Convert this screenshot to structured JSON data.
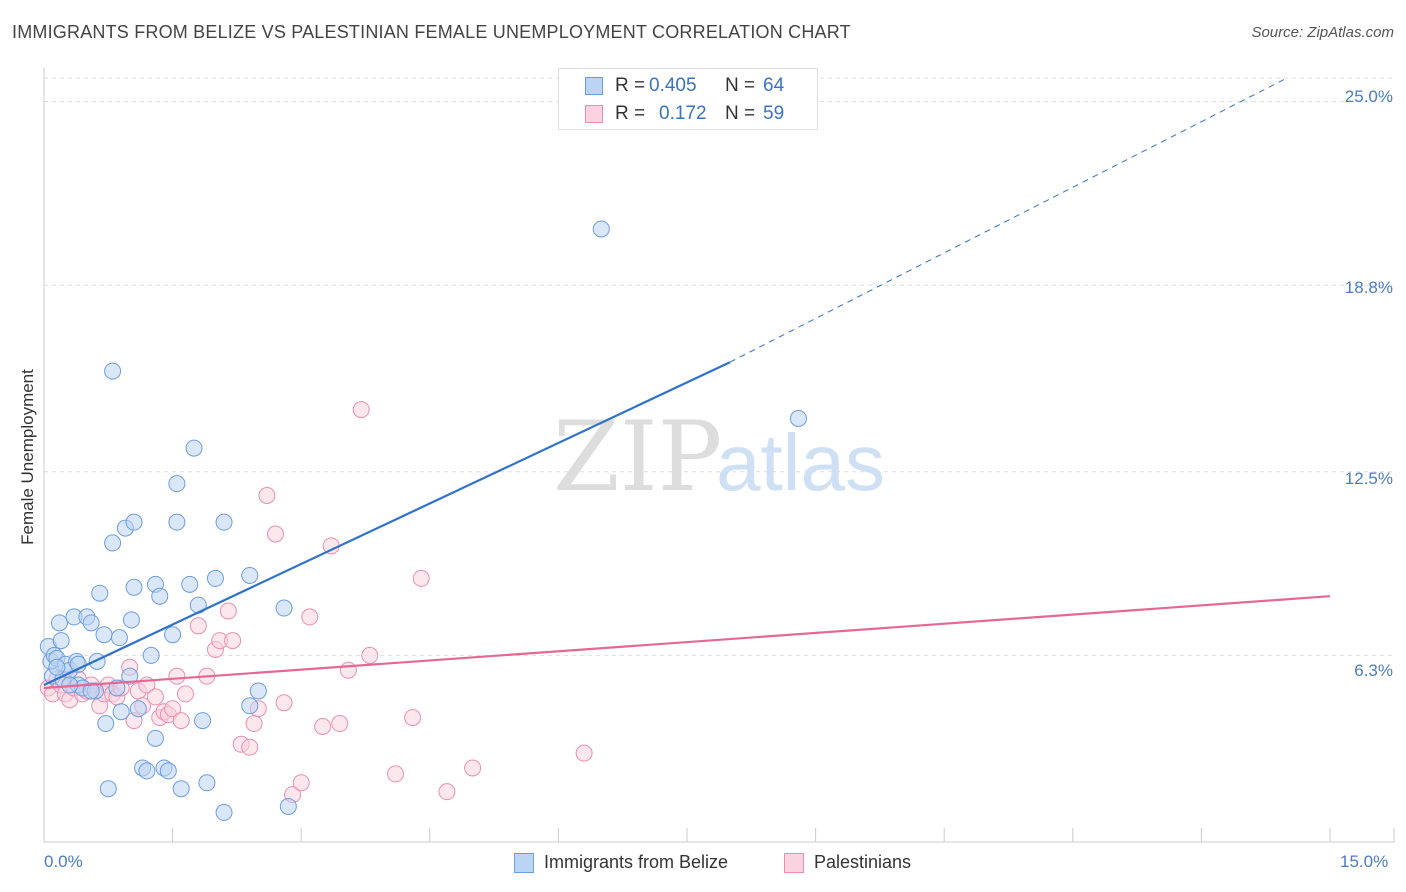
{
  "title": "IMMIGRANTS FROM BELIZE VS PALESTINIAN FEMALE UNEMPLOYMENT CORRELATION CHART",
  "source": "Source: ZipAtlas.com",
  "watermark": {
    "part1": "ZIP",
    "part2": "atlas"
  },
  "legend": {
    "rows": [
      {
        "r_label": "R =",
        "r_value": "0.405",
        "n_label": "N =",
        "n_value": "64"
      },
      {
        "r_label": "R =",
        "r_value": "0.172",
        "n_label": "N =",
        "n_value": "59"
      }
    ]
  },
  "bottom_legend": {
    "series1": "Immigrants from Belize",
    "series2": "Palestinians"
  },
  "colors": {
    "blue": "#6c9de0",
    "blue_fill": "#bcd4f4",
    "blue_line": "#2f72c9",
    "pink": "#ea8fae",
    "pink_fill": "#f9d3df",
    "pink_line": "#e36994",
    "tick_text": "#4a7cc4",
    "grid": "#dddddd"
  },
  "chart_data": {
    "type": "scatter",
    "title": "IMMIGRANTS FROM BELIZE VS PALESTINIAN FEMALE UNEMPLOYMENT CORRELATION CHART",
    "xlabel": "",
    "ylabel": "Female Unemployment",
    "xlim": [
      0,
      15
    ],
    "ylim": [
      0,
      26
    ],
    "x_tick_labels": [
      "0.0%",
      "15.0%"
    ],
    "y_ticks": [
      6.3,
      12.5,
      18.8,
      25.0
    ],
    "y_tick_labels": [
      "6.3%",
      "12.5%",
      "18.8%",
      "25.0%"
    ],
    "grid": true,
    "series": [
      {
        "name": "Immigrants from Belize",
        "R": 0.405,
        "N": 64,
        "trend": {
          "x0": 0.0,
          "y0": 5.3,
          "x1": 8.0,
          "y1": 16.2,
          "dash_to_x": 14.5,
          "dash_to_y": 25.8
        },
        "points": [
          [
            0.05,
            6.6
          ],
          [
            0.08,
            6.1
          ],
          [
            0.1,
            5.6
          ],
          [
            0.12,
            6.3
          ],
          [
            0.15,
            6.2
          ],
          [
            0.18,
            7.4
          ],
          [
            0.2,
            6.8
          ],
          [
            0.22,
            5.5
          ],
          [
            0.25,
            6.0
          ],
          [
            0.3,
            5.8
          ],
          [
            0.35,
            7.6
          ],
          [
            0.38,
            6.1
          ],
          [
            0.4,
            5.3
          ],
          [
            0.45,
            5.2
          ],
          [
            0.5,
            7.6
          ],
          [
            0.55,
            7.4
          ],
          [
            0.6,
            5.1
          ],
          [
            0.62,
            6.1
          ],
          [
            0.65,
            8.4
          ],
          [
            0.7,
            7.0
          ],
          [
            0.72,
            4.0
          ],
          [
            0.75,
            1.8
          ],
          [
            0.8,
            10.1
          ],
          [
            0.85,
            5.2
          ],
          [
            0.88,
            6.9
          ],
          [
            0.9,
            4.4
          ],
          [
            0.95,
            10.6
          ],
          [
            1.0,
            5.6
          ],
          [
            1.02,
            7.5
          ],
          [
            1.05,
            10.8
          ],
          [
            1.05,
            8.6
          ],
          [
            1.1,
            4.5
          ],
          [
            1.15,
            2.5
          ],
          [
            1.2,
            2.4
          ],
          [
            1.25,
            6.3
          ],
          [
            1.3,
            8.7
          ],
          [
            1.3,
            3.5
          ],
          [
            1.35,
            8.3
          ],
          [
            1.4,
            2.5
          ],
          [
            1.45,
            2.4
          ],
          [
            1.5,
            7.0
          ],
          [
            1.55,
            12.1
          ],
          [
            1.55,
            10.8
          ],
          [
            1.6,
            1.8
          ],
          [
            1.7,
            8.7
          ],
          [
            1.75,
            13.3
          ],
          [
            1.8,
            8.0
          ],
          [
            1.85,
            4.1
          ],
          [
            1.9,
            2.0
          ],
          [
            2.0,
            8.9
          ],
          [
            2.1,
            10.8
          ],
          [
            2.1,
            1.0
          ],
          [
            2.4,
            9.0
          ],
          [
            2.4,
            4.6
          ],
          [
            2.5,
            5.1
          ],
          [
            2.8,
            7.9
          ],
          [
            2.85,
            1.2
          ],
          [
            0.8,
            15.9
          ],
          [
            6.5,
            20.7
          ],
          [
            8.8,
            14.3
          ],
          [
            0.3,
            5.3
          ],
          [
            0.55,
            5.1
          ],
          [
            0.15,
            5.9
          ],
          [
            0.4,
            6.0
          ]
        ]
      },
      {
        "name": "Palestinians",
        "R": 0.172,
        "N": 59,
        "trend": {
          "x0": 0.0,
          "y0": 5.2,
          "x1": 15.0,
          "y1": 8.3
        },
        "points": [
          [
            0.05,
            5.2
          ],
          [
            0.1,
            5.0
          ],
          [
            0.15,
            5.5
          ],
          [
            0.2,
            5.3
          ],
          [
            0.25,
            5.0
          ],
          [
            0.3,
            4.8
          ],
          [
            0.35,
            5.2
          ],
          [
            0.4,
            5.5
          ],
          [
            0.45,
            5.0
          ],
          [
            0.5,
            5.1
          ],
          [
            0.55,
            5.3
          ],
          [
            0.6,
            5.1
          ],
          [
            0.65,
            4.6
          ],
          [
            0.7,
            5.0
          ],
          [
            0.75,
            5.3
          ],
          [
            0.8,
            5.0
          ],
          [
            0.85,
            4.9
          ],
          [
            0.9,
            5.2
          ],
          [
            1.0,
            5.9
          ],
          [
            1.05,
            4.1
          ],
          [
            1.1,
            5.1
          ],
          [
            1.15,
            4.6
          ],
          [
            1.2,
            5.3
          ],
          [
            1.3,
            4.9
          ],
          [
            1.35,
            4.2
          ],
          [
            1.4,
            4.4
          ],
          [
            1.45,
            4.3
          ],
          [
            1.5,
            4.5
          ],
          [
            1.55,
            5.6
          ],
          [
            1.6,
            4.1
          ],
          [
            1.65,
            5.0
          ],
          [
            1.8,
            7.3
          ],
          [
            1.9,
            5.6
          ],
          [
            2.0,
            6.5
          ],
          [
            2.05,
            6.8
          ],
          [
            2.15,
            7.8
          ],
          [
            2.2,
            6.8
          ],
          [
            2.3,
            3.3
          ],
          [
            2.4,
            3.2
          ],
          [
            2.45,
            4.0
          ],
          [
            2.5,
            4.5
          ],
          [
            2.6,
            11.7
          ],
          [
            2.7,
            10.4
          ],
          [
            2.8,
            4.7
          ],
          [
            2.9,
            1.6
          ],
          [
            3.0,
            2.0
          ],
          [
            3.1,
            7.6
          ],
          [
            3.25,
            3.9
          ],
          [
            3.35,
            10.0
          ],
          [
            3.45,
            4.0
          ],
          [
            3.55,
            5.8
          ],
          [
            3.7,
            14.6
          ],
          [
            3.8,
            6.3
          ],
          [
            4.1,
            2.3
          ],
          [
            4.3,
            4.2
          ],
          [
            4.4,
            8.9
          ],
          [
            4.7,
            1.7
          ],
          [
            5.0,
            2.5
          ],
          [
            6.3,
            3.0
          ]
        ]
      }
    ]
  }
}
